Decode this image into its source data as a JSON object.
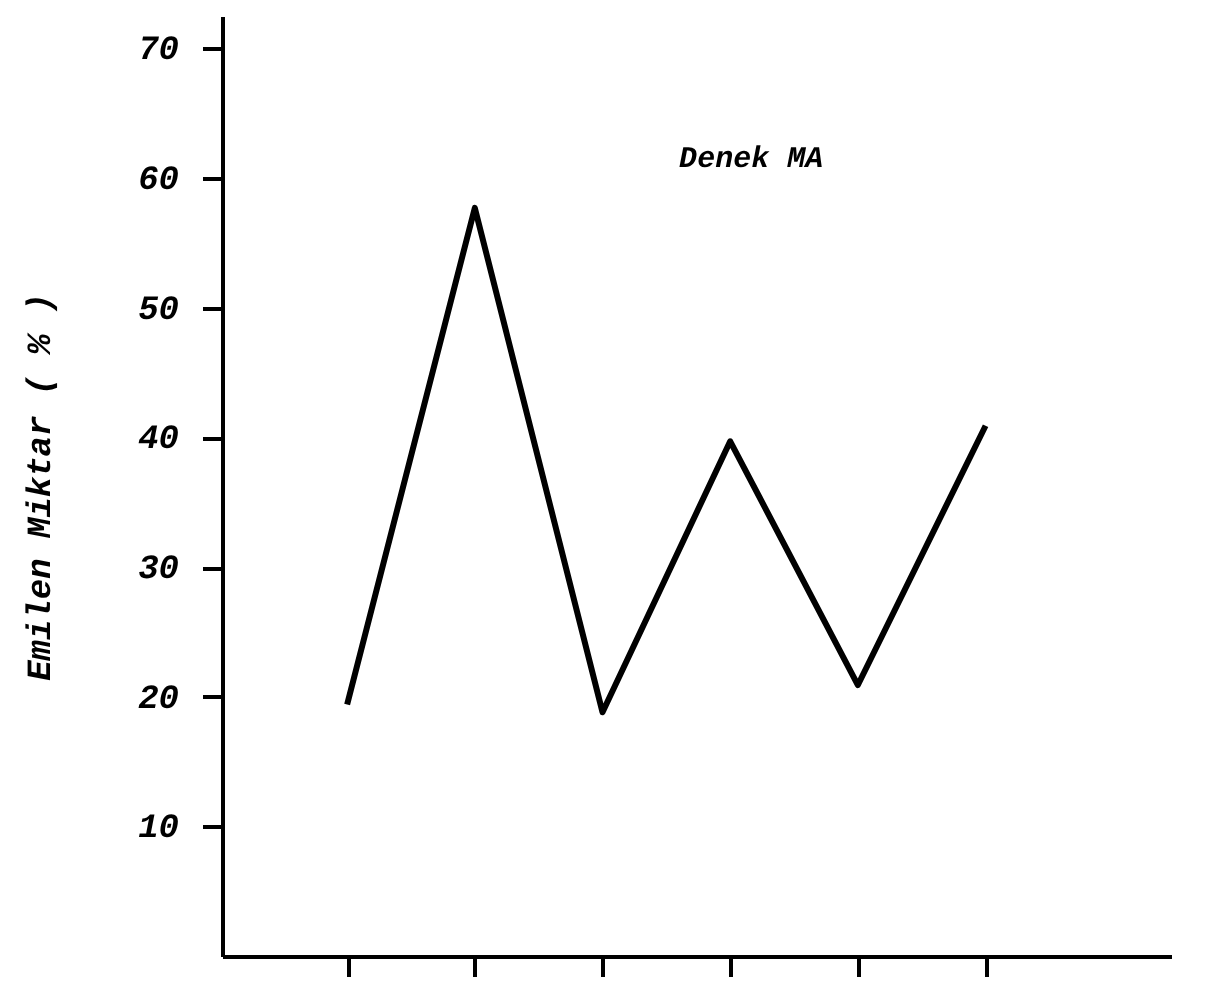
{
  "chart_data": {
    "type": "line",
    "ylabel": "Emilen Miktar ( % )",
    "categories": [
      null,
      null,
      null,
      null,
      null,
      null
    ],
    "series": [
      {
        "name": "Denek MA",
        "color": "#000000",
        "values": [
          19.4,
          57.7,
          18.8,
          39.7,
          20.9,
          40.9
        ]
      }
    ],
    "ylim": [
      0,
      72.5
    ],
    "yticks": [
      10,
      20,
      30,
      40,
      50,
      60,
      70
    ],
    "tick_labels": "y",
    "grid": false,
    "legend": false,
    "marker": "none",
    "line_style": "solid"
  }
}
